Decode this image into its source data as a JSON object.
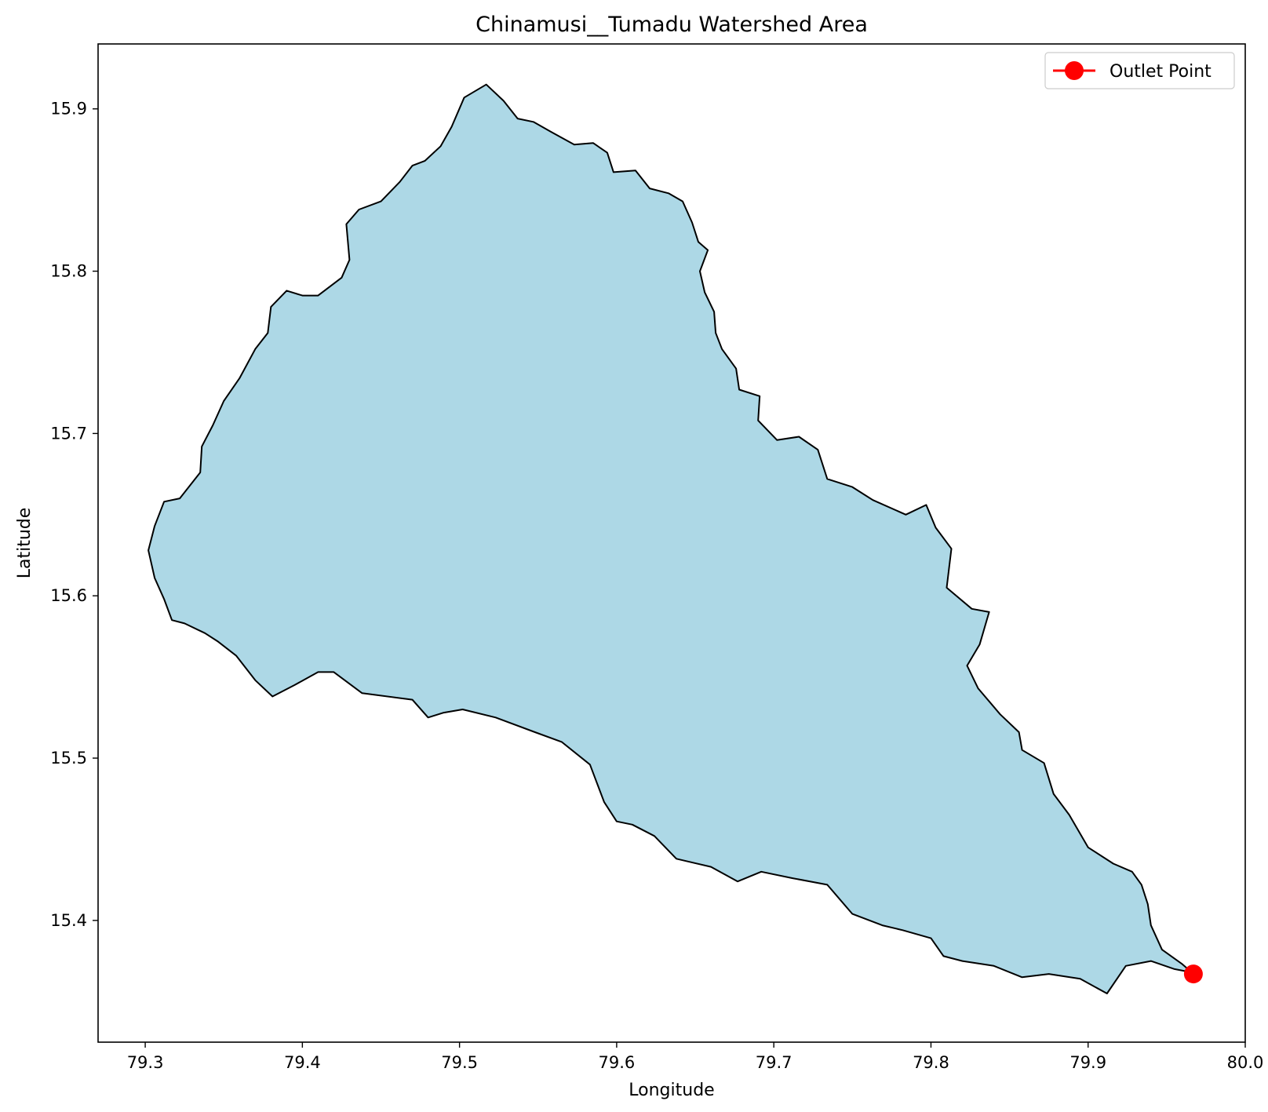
{
  "chart_data": {
    "type": "map",
    "title": "Chinamusi__Tumadu Watershed Area",
    "xlabel": "Longitude",
    "ylabel": "Latitude",
    "xlim": [
      79.27,
      80.0
    ],
    "ylim": [
      15.325,
      15.94
    ],
    "x_ticks": [
      79.3,
      79.4,
      79.5,
      79.6,
      79.7,
      79.8,
      79.9,
      80.0
    ],
    "x_tick_labels": [
      "79.3",
      "79.4",
      "79.5",
      "79.6",
      "79.7",
      "79.8",
      "79.9",
      "80.0"
    ],
    "y_ticks": [
      15.4,
      15.5,
      15.6,
      15.7,
      15.8,
      15.9
    ],
    "y_tick_labels": [
      "15.4",
      "15.5",
      "15.6",
      "15.7",
      "15.8",
      "15.9"
    ],
    "grid": false,
    "legend_position": "top-right",
    "colors": {
      "watershed_fill": "#add8e6",
      "watershed_edge": "#000000",
      "outlet": "#ff0000"
    },
    "watershed_boundary": [
      [
        79.517,
        15.915
      ],
      [
        79.528,
        15.905
      ],
      [
        79.537,
        15.894
      ],
      [
        79.547,
        15.892
      ],
      [
        79.558,
        15.886
      ],
      [
        79.573,
        15.878
      ],
      [
        79.585,
        15.879
      ],
      [
        79.594,
        15.873
      ],
      [
        79.598,
        15.861
      ],
      [
        79.612,
        15.862
      ],
      [
        79.621,
        15.851
      ],
      [
        79.633,
        15.848
      ],
      [
        79.642,
        15.843
      ],
      [
        79.648,
        15.83
      ],
      [
        79.652,
        15.818
      ],
      [
        79.658,
        15.813
      ],
      [
        79.653,
        15.8
      ],
      [
        79.656,
        15.787
      ],
      [
        79.662,
        15.775
      ],
      [
        79.663,
        15.762
      ],
      [
        79.667,
        15.752
      ],
      [
        79.676,
        15.74
      ],
      [
        79.678,
        15.727
      ],
      [
        79.691,
        15.723
      ],
      [
        79.69,
        15.708
      ],
      [
        79.702,
        15.696
      ],
      [
        79.716,
        15.698
      ],
      [
        79.728,
        15.69
      ],
      [
        79.734,
        15.672
      ],
      [
        79.75,
        15.667
      ],
      [
        79.763,
        15.659
      ],
      [
        79.784,
        15.65
      ],
      [
        79.797,
        15.656
      ],
      [
        79.803,
        15.642
      ],
      [
        79.813,
        15.629
      ],
      [
        79.81,
        15.605
      ],
      [
        79.826,
        15.592
      ],
      [
        79.837,
        15.59
      ],
      [
        79.831,
        15.57
      ],
      [
        79.823,
        15.557
      ],
      [
        79.83,
        15.543
      ],
      [
        79.844,
        15.527
      ],
      [
        79.856,
        15.516
      ],
      [
        79.858,
        15.505
      ],
      [
        79.872,
        15.497
      ],
      [
        79.878,
        15.478
      ],
      [
        79.888,
        15.465
      ],
      [
        79.9,
        15.445
      ],
      [
        79.916,
        15.435
      ],
      [
        79.928,
        15.43
      ],
      [
        79.934,
        15.422
      ],
      [
        79.938,
        15.41
      ],
      [
        79.94,
        15.397
      ],
      [
        79.947,
        15.382
      ],
      [
        79.96,
        15.373
      ],
      [
        79.966,
        15.368
      ],
      [
        79.955,
        15.37
      ],
      [
        79.94,
        15.375
      ],
      [
        79.924,
        15.372
      ],
      [
        79.912,
        15.355
      ],
      [
        79.895,
        15.364
      ],
      [
        79.875,
        15.367
      ],
      [
        79.858,
        15.365
      ],
      [
        79.84,
        15.372
      ],
      [
        79.82,
        15.375
      ],
      [
        79.808,
        15.378
      ],
      [
        79.8,
        15.389
      ],
      [
        79.782,
        15.394
      ],
      [
        79.769,
        15.397
      ],
      [
        79.75,
        15.404
      ],
      [
        79.734,
        15.422
      ],
      [
        79.712,
        15.426
      ],
      [
        79.692,
        15.43
      ],
      [
        79.677,
        15.424
      ],
      [
        79.66,
        15.433
      ],
      [
        79.638,
        15.438
      ],
      [
        79.624,
        15.452
      ],
      [
        79.61,
        15.459
      ],
      [
        79.6,
        15.461
      ],
      [
        79.592,
        15.473
      ],
      [
        79.583,
        15.496
      ],
      [
        79.565,
        15.51
      ],
      [
        79.548,
        15.516
      ],
      [
        79.523,
        15.525
      ],
      [
        79.502,
        15.53
      ],
      [
        79.49,
        15.528
      ],
      [
        79.48,
        15.525
      ],
      [
        79.47,
        15.536
      ],
      [
        79.438,
        15.54
      ],
      [
        79.42,
        15.553
      ],
      [
        79.41,
        15.553
      ],
      [
        79.395,
        15.545
      ],
      [
        79.381,
        15.538
      ],
      [
        79.37,
        15.548
      ],
      [
        79.358,
        15.563
      ],
      [
        79.346,
        15.572
      ],
      [
        79.338,
        15.577
      ],
      [
        79.325,
        15.583
      ],
      [
        79.317,
        15.585
      ],
      [
        79.312,
        15.598
      ],
      [
        79.306,
        15.611
      ],
      [
        79.302,
        15.628
      ],
      [
        79.306,
        15.643
      ],
      [
        79.312,
        15.658
      ],
      [
        79.322,
        15.66
      ],
      [
        79.335,
        15.676
      ],
      [
        79.336,
        15.692
      ],
      [
        79.343,
        15.705
      ],
      [
        79.35,
        15.72
      ],
      [
        79.36,
        15.734
      ],
      [
        79.37,
        15.752
      ],
      [
        79.378,
        15.762
      ],
      [
        79.38,
        15.778
      ],
      [
        79.39,
        15.788
      ],
      [
        79.4,
        15.785
      ],
      [
        79.41,
        15.785
      ],
      [
        79.425,
        15.796
      ],
      [
        79.43,
        15.807
      ],
      [
        79.428,
        15.829
      ],
      [
        79.436,
        15.838
      ],
      [
        79.45,
        15.843
      ],
      [
        79.462,
        15.855
      ],
      [
        79.47,
        15.865
      ],
      [
        79.478,
        15.868
      ],
      [
        79.488,
        15.877
      ],
      [
        79.495,
        15.889
      ],
      [
        79.503,
        15.907
      ]
    ],
    "outlet_point": {
      "lon": 79.967,
      "lat": 15.367,
      "label": "Outlet Point"
    }
  }
}
